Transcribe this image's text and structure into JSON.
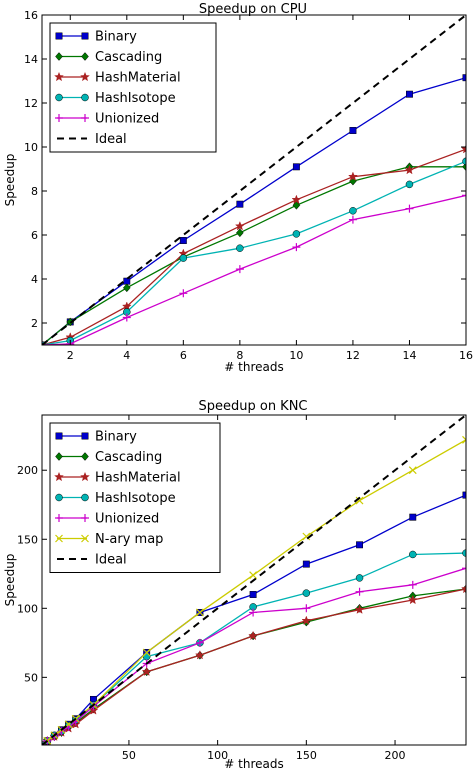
{
  "chart_data": [
    {
      "type": "line",
      "title": "Speedup on CPU",
      "xlabel": "# threads",
      "ylabel": "Speedup",
      "xlim": [
        1,
        16
      ],
      "ylim": [
        1,
        16
      ],
      "xticks": [
        2,
        4,
        6,
        8,
        10,
        12,
        14,
        16
      ],
      "yticks": [
        2,
        4,
        6,
        8,
        10,
        12,
        14,
        16
      ],
      "legend": "top-left",
      "grid": false,
      "x": [
        1,
        2,
        4,
        6,
        8,
        10,
        12,
        14,
        16
      ],
      "series": [
        {
          "name": "Binary",
          "color": "#0000cc",
          "marker": "square",
          "linestyle": "solid",
          "values": [
            1,
            2.05,
            3.9,
            5.75,
            7.4,
            9.1,
            10.75,
            12.4,
            13.15
          ]
        },
        {
          "name": "Cascading",
          "color": "#007700",
          "marker": "diamond",
          "linestyle": "solid",
          "values": [
            1,
            2.05,
            3.6,
            5.0,
            6.1,
            7.35,
            8.45,
            9.1,
            9.1
          ]
        },
        {
          "name": "HashMaterial",
          "color": "#aa2222",
          "marker": "star",
          "linestyle": "solid",
          "values": [
            1,
            1.35,
            2.75,
            5.15,
            6.4,
            7.6,
            8.65,
            8.95,
            9.9
          ]
        },
        {
          "name": "HashIsotope",
          "color": "#00b3b3",
          "marker": "circle",
          "linestyle": "solid",
          "values": [
            1,
            1.2,
            2.5,
            4.95,
            5.4,
            6.05,
            7.1,
            8.3,
            9.35
          ]
        },
        {
          "name": "Unionized",
          "color": "#cc00cc",
          "marker": "plus",
          "linestyle": "solid",
          "values": [
            1,
            1.05,
            2.25,
            3.35,
            4.45,
            5.45,
            6.7,
            7.2,
            7.8
          ]
        },
        {
          "name": "Ideal",
          "color": "#000000",
          "marker": "none",
          "linestyle": "dashed",
          "values": [
            1,
            2,
            4,
            6,
            8,
            10,
            12,
            14,
            16
          ]
        }
      ]
    },
    {
      "type": "line",
      "title": "Speedup on KNC",
      "xlabel": "# threads",
      "ylabel": "Speedup",
      "xlim": [
        1,
        240
      ],
      "ylim": [
        1,
        240
      ],
      "xticks": [
        50,
        100,
        150,
        200
      ],
      "yticks": [
        50,
        100,
        150,
        200
      ],
      "legend": "top-left",
      "grid": false,
      "x": [
        1,
        4,
        8,
        12,
        16,
        20,
        30,
        60,
        90,
        120,
        150,
        180,
        210,
        240
      ],
      "series": [
        {
          "name": "Binary",
          "color": "#0000cc",
          "marker": "square",
          "linestyle": "solid",
          "values": [
            1,
            4,
            8,
            12,
            16,
            20,
            34,
            68,
            97,
            110,
            132,
            146,
            166,
            182
          ]
        },
        {
          "name": "Cascading",
          "color": "#007700",
          "marker": "diamond",
          "linestyle": "solid",
          "values": [
            1,
            4,
            7,
            10,
            14,
            17,
            27,
            54,
            66,
            80,
            90,
            100,
            109,
            114
          ]
        },
        {
          "name": "HashMaterial",
          "color": "#aa2222",
          "marker": "star",
          "linestyle": "solid",
          "values": [
            1,
            4,
            7,
            10,
            13,
            16,
            26,
            54,
            66,
            80,
            91,
            99,
            106,
            114
          ]
        },
        {
          "name": "HashIsotope",
          "color": "#00b3b3",
          "marker": "circle",
          "linestyle": "solid",
          "values": [
            1,
            4,
            8,
            11,
            15,
            19,
            30,
            65,
            75,
            101,
            111,
            122,
            139,
            140
          ]
        },
        {
          "name": "Unionized",
          "color": "#cc00cc",
          "marker": "plus",
          "linestyle": "solid",
          "values": [
            1,
            4,
            7,
            11,
            14,
            18,
            29,
            60,
            75,
            97,
            100,
            112,
            117,
            129
          ]
        },
        {
          "name": "N-ary map",
          "color": "#cccc00",
          "marker": "x",
          "linestyle": "solid",
          "values": [
            1,
            4,
            8,
            12,
            16,
            20,
            30,
            68,
            97,
            124,
            152,
            178,
            200,
            222
          ]
        },
        {
          "name": "Ideal",
          "color": "#000000",
          "marker": "none",
          "linestyle": "dashed",
          "values": [
            1,
            4,
            8,
            12,
            16,
            20,
            30,
            60,
            90,
            120,
            150,
            180,
            210,
            240
          ]
        }
      ]
    }
  ]
}
